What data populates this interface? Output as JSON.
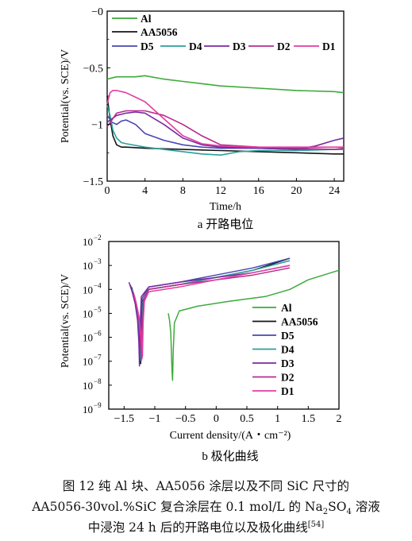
{
  "colors": {
    "Al": "#3daa3c",
    "AA5056": "#151515",
    "D5": "#4747b5",
    "D4": "#2aa09c",
    "D3": "#7a2aa0",
    "D2": "#b62b8e",
    "D1": "#e23da0"
  },
  "chart_data": [
    {
      "type": "line",
      "ylabel": "Potential(vs. SCE)/V",
      "xlabel": "Time/h",
      "subcaption": "a  开路电位",
      "xlim": [
        0,
        25
      ],
      "ylim": [
        -1.5,
        0
      ],
      "xticks": [
        "0",
        "4",
        "8",
        "12",
        "16",
        "20",
        "24"
      ],
      "yticks": [
        "−1.5",
        "−1",
        "−0.5",
        "−0"
      ],
      "legend_position": "top",
      "series": [
        {
          "name": "Al",
          "x": [
            0,
            1,
            2,
            3,
            4,
            6,
            8,
            10,
            12,
            16,
            20,
            24,
            25
          ],
          "y": [
            -0.6,
            -0.58,
            -0.58,
            -0.58,
            -0.57,
            -0.6,
            -0.62,
            -0.64,
            -0.66,
            -0.68,
            -0.7,
            -0.71,
            -0.72
          ]
        },
        {
          "name": "AA5056",
          "x": [
            0,
            0.3,
            0.6,
            1,
            1.5,
            2,
            4,
            8,
            12,
            16,
            20,
            24,
            25
          ],
          "y": [
            -0.75,
            -0.95,
            -1.1,
            -1.18,
            -1.2,
            -1.2,
            -1.21,
            -1.22,
            -1.23,
            -1.24,
            -1.25,
            -1.26,
            -1.26
          ]
        },
        {
          "name": "D5",
          "x": [
            0,
            0.5,
            1,
            1.5,
            2,
            3,
            4,
            6,
            8,
            10,
            12,
            16,
            20,
            24,
            25
          ],
          "y": [
            -0.92,
            -0.98,
            -1.0,
            -0.97,
            -0.96,
            -1.0,
            -1.08,
            -1.14,
            -1.18,
            -1.2,
            -1.21,
            -1.21,
            -1.22,
            -1.22,
            -1.22
          ]
        },
        {
          "name": "D4",
          "x": [
            0,
            0.3,
            0.6,
            1,
            1.5,
            2,
            4,
            6,
            8,
            10,
            12,
            14,
            16,
            20,
            24,
            25
          ],
          "y": [
            -0.83,
            -0.92,
            -1.05,
            -1.12,
            -1.16,
            -1.17,
            -1.2,
            -1.22,
            -1.24,
            -1.26,
            -1.27,
            -1.24,
            -1.23,
            -1.23,
            -1.22,
            -1.22
          ]
        },
        {
          "name": "D3",
          "x": [
            0,
            0.5,
            1,
            2,
            3,
            4,
            6,
            8,
            10,
            12,
            16,
            20,
            22,
            24,
            25
          ],
          "y": [
            -0.98,
            -0.95,
            -0.92,
            -0.9,
            -0.89,
            -0.9,
            -1.0,
            -1.12,
            -1.18,
            -1.2,
            -1.21,
            -1.22,
            -1.19,
            -1.14,
            -1.12
          ]
        },
        {
          "name": "D2",
          "x": [
            0,
            0.5,
            1,
            2,
            3,
            4,
            6,
            8,
            10,
            12,
            16,
            20,
            24,
            25
          ],
          "y": [
            -1.02,
            -0.96,
            -0.9,
            -0.88,
            -0.88,
            -0.88,
            -0.92,
            -1.0,
            -1.1,
            -1.18,
            -1.2,
            -1.21,
            -1.22,
            -1.21
          ]
        },
        {
          "name": "D1",
          "x": [
            0,
            0.3,
            0.6,
            1,
            2,
            3,
            4,
            6,
            8,
            10,
            12,
            16,
            20,
            24,
            25
          ],
          "y": [
            -0.82,
            -0.72,
            -0.7,
            -0.7,
            -0.72,
            -0.76,
            -0.8,
            -0.95,
            -1.1,
            -1.17,
            -1.19,
            -1.2,
            -1.2,
            -1.2,
            -1.2
          ]
        }
      ]
    },
    {
      "type": "line",
      "ylabel": "Potential(vs. SCE)/V",
      "xlabel": "Current density/(A・cm⁻²)",
      "subcaption": "b  极化曲线",
      "xlim": [
        -1.75,
        2
      ],
      "ylim_log10": [
        -9,
        -2
      ],
      "xticks": [
        "−1.5",
        "−1",
        "−0.5",
        "0",
        "0.5",
        "1",
        "1.5",
        "2"
      ],
      "yticks": [
        "10",
        "10",
        "10",
        "10",
        "10",
        "10",
        "10",
        "10"
      ],
      "ytick_exponents": [
        "−9",
        "−8",
        "−7",
        "−6",
        "−5",
        "−4",
        "−3",
        "−2"
      ],
      "legend_position": "bottom-right",
      "series": [
        {
          "name": "Al",
          "x": [
            -0.78,
            -0.76,
            -0.74,
            -0.73,
            -0.72,
            -0.71,
            -0.7,
            -0.68,
            -0.6,
            -0.3,
            0.2,
            0.8,
            1.2,
            1.5,
            2.0
          ],
          "y": [
            -5.0,
            -5.3,
            -5.8,
            -6.6,
            -7.4,
            -7.8,
            -6.6,
            -5.4,
            -4.9,
            -4.7,
            -4.5,
            -4.3,
            -4.0,
            -3.6,
            -3.2
          ]
        },
        {
          "name": "AA5056",
          "x": [
            -1.38,
            -1.33,
            -1.29,
            -1.26,
            -1.24,
            -1.23,
            -1.22,
            -1.2,
            -1.1,
            -0.6,
            0.0,
            0.6,
            1.2
          ],
          "y": [
            -3.9,
            -4.3,
            -4.8,
            -5.5,
            -6.4,
            -7.1,
            -5.8,
            -4.5,
            -4.0,
            -3.8,
            -3.5,
            -3.2,
            -2.7
          ]
        },
        {
          "name": "D5",
          "x": [
            -1.4,
            -1.35,
            -1.3,
            -1.27,
            -1.25,
            -1.24,
            -1.23,
            -1.21,
            -1.1,
            -0.6,
            0.0,
            0.6,
            1.2
          ],
          "y": [
            -3.8,
            -4.2,
            -4.7,
            -5.4,
            -6.3,
            -6.9,
            -5.6,
            -4.4,
            -3.9,
            -3.7,
            -3.4,
            -3.1,
            -2.7
          ]
        },
        {
          "name": "D4",
          "x": [
            -1.37,
            -1.32,
            -1.28,
            -1.25,
            -1.23,
            -1.22,
            -1.21,
            -1.19,
            -1.1,
            -0.6,
            0.0,
            0.6,
            1.2
          ],
          "y": [
            -4.0,
            -4.4,
            -4.9,
            -5.6,
            -6.5,
            -7.0,
            -5.7,
            -4.5,
            -4.0,
            -3.8,
            -3.5,
            -3.2,
            -2.8
          ]
        },
        {
          "name": "D3",
          "x": [
            -1.42,
            -1.37,
            -1.32,
            -1.28,
            -1.26,
            -1.25,
            -1.24,
            -1.22,
            -1.1,
            -0.6,
            0.0,
            0.6,
            1.2
          ],
          "y": [
            -3.7,
            -4.1,
            -4.6,
            -5.3,
            -6.2,
            -7.2,
            -5.6,
            -4.3,
            -3.9,
            -3.7,
            -3.5,
            -3.3,
            -3.0
          ]
        },
        {
          "name": "D2",
          "x": [
            -1.36,
            -1.31,
            -1.27,
            -1.24,
            -1.22,
            -1.21,
            -1.2,
            -1.18,
            -1.1,
            -0.6,
            0.0,
            0.6,
            1.2
          ],
          "y": [
            -4.1,
            -4.5,
            -5.0,
            -5.7,
            -6.5,
            -6.9,
            -5.5,
            -4.4,
            -4.0,
            -3.8,
            -3.6,
            -3.4,
            -3.1
          ]
        },
        {
          "name": "D1",
          "x": [
            -1.34,
            -1.3,
            -1.26,
            -1.23,
            -1.21,
            -1.2,
            -1.19,
            -1.17,
            -1.1,
            -0.6,
            0.0,
            0.6,
            1.2
          ],
          "y": [
            -4.2,
            -4.6,
            -5.1,
            -5.8,
            -6.4,
            -6.8,
            -5.4,
            -4.5,
            -4.1,
            -3.9,
            -3.6,
            -3.3,
            -3.0
          ]
        }
      ]
    }
  ],
  "caption": {
    "line1": "图 12    纯 Al 块、AA5056 涂层以及不同 SiC 尺寸的",
    "line2_pre": "AA5056-30vol.%SiC 复合涂层在 0.1 mol/L 的 Na",
    "line2_sub1": "2",
    "line2_mid": "SO",
    "line2_sub2": "4",
    "line2_post": " 溶液",
    "line3": "中浸泡 24 h 后的开路电位以及极化曲线",
    "line3_ref": "[54]"
  }
}
